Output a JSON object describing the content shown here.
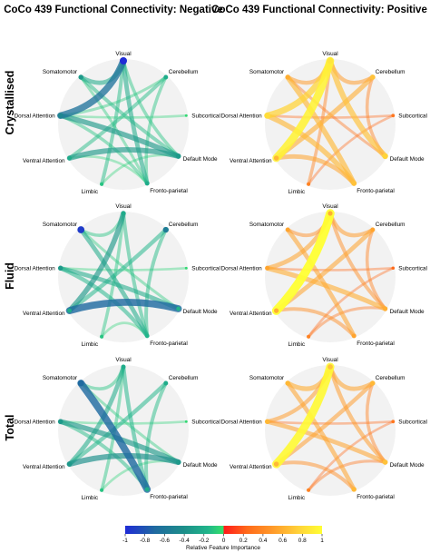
{
  "titles": {
    "negative": "CoCo 439 Functional Connectivity: Negative",
    "positive": "CoCo 439 Functional Connectivity: Positive"
  },
  "row_labels": [
    "Crystallised",
    "Fluid",
    "Total"
  ],
  "colorbar": {
    "label": "Relative Feature Importance",
    "ticks": [
      "-1",
      "-0.8",
      "-0.6",
      "-0.4",
      "-0.2",
      "0",
      "0.2",
      "0.4",
      "0.6",
      "0.8",
      "1"
    ],
    "range": [
      -1,
      1
    ],
    "negative_colors": [
      "#1f2bd6",
      "#1f6aa0",
      "#1d8f8a",
      "#20b58a",
      "#2fd27a",
      "#35e06a"
    ],
    "positive_colors": [
      "#ff1a1a",
      "#ff6a1a",
      "#ff9a2a",
      "#ffc23a",
      "#ffe63a",
      "#ffff33"
    ]
  },
  "chart_data": [
    {
      "type": "chord",
      "panel": "Crystallised — Negative",
      "nodes": [
        "Visual",
        "Cerebellum",
        "Subcortical",
        "Default Mode",
        "Fronto-parietal",
        "Limbic",
        "Ventral Attention",
        "Dorsal Attention",
        "Somatomotor"
      ],
      "node_values": [
        -1.0,
        -0.45,
        -0.1,
        -0.55,
        -0.45,
        -0.3,
        -0.45,
        -0.65,
        -0.55
      ],
      "edges": [
        {
          "from": "Visual",
          "to": "Dorsal Attention",
          "value": -0.75
        },
        {
          "from": "Somatomotor",
          "to": "Visual",
          "value": -0.45
        },
        {
          "from": "Dorsal Attention",
          "to": "Default Mode",
          "value": -0.55
        },
        {
          "from": "Ventral Attention",
          "to": "Default Mode",
          "value": -0.55
        },
        {
          "from": "Visual",
          "to": "Fronto-parietal",
          "value": -0.45
        },
        {
          "from": "Somatomotor",
          "to": "Default Mode",
          "value": -0.35
        },
        {
          "from": "Visual",
          "to": "Limbic",
          "value": -0.35
        },
        {
          "from": "Cerebellum",
          "to": "Ventral Attention",
          "value": -0.35
        },
        {
          "from": "Cerebellum",
          "to": "Fronto-parietal",
          "value": -0.3
        },
        {
          "from": "Dorsal Attention",
          "to": "Fronto-parietal",
          "value": -0.3
        },
        {
          "from": "Visual",
          "to": "Default Mode",
          "value": -0.3
        },
        {
          "from": "Subcortical",
          "to": "Dorsal Attention",
          "value": -0.2
        },
        {
          "from": "Somatomotor",
          "to": "Fronto-parietal",
          "value": -0.25
        },
        {
          "from": "Cerebellum",
          "to": "Dorsal Attention",
          "value": -0.25
        },
        {
          "from": "Ventral Attention",
          "to": "Fronto-parietal",
          "value": -0.2
        },
        {
          "from": "Limbic",
          "to": "Default Mode",
          "value": -0.2
        }
      ]
    },
    {
      "type": "chord",
      "panel": "Crystallised — Positive",
      "nodes": [
        "Visual",
        "Cerebellum",
        "Subcortical",
        "Default Mode",
        "Fronto-parietal",
        "Limbic",
        "Ventral Attention",
        "Dorsal Attention",
        "Somatomotor"
      ],
      "node_values": [
        0.8,
        0.6,
        0.25,
        0.7,
        0.6,
        0.3,
        0.55,
        0.75,
        0.5
      ],
      "edges": [
        {
          "from": "Visual",
          "to": "Ventral Attention",
          "value": 0.9
        },
        {
          "from": "Visual",
          "to": "Dorsal Attention",
          "value": 0.7
        },
        {
          "from": "Visual",
          "to": "Default Mode",
          "value": 0.6
        },
        {
          "from": "Somatomotor",
          "to": "Fronto-parietal",
          "value": 0.55
        },
        {
          "from": "Cerebellum",
          "to": "Ventral Attention",
          "value": 0.5
        },
        {
          "from": "Dorsal Attention",
          "to": "Fronto-parietal",
          "value": 0.55
        },
        {
          "from": "Ventral Attention",
          "to": "Fronto-parietal",
          "value": 0.45
        },
        {
          "from": "Visual",
          "to": "Cerebellum",
          "value": 0.4
        },
        {
          "from": "Somatomotor",
          "to": "Visual",
          "value": 0.4
        },
        {
          "from": "Cerebellum",
          "to": "Default Mode",
          "value": 0.3
        },
        {
          "from": "Subcortical",
          "to": "Dorsal Attention",
          "value": 0.2
        },
        {
          "from": "Limbic",
          "to": "Visual",
          "value": 0.3
        },
        {
          "from": "Subcortical",
          "to": "Limbic",
          "value": 0.2
        },
        {
          "from": "Default Mode",
          "to": "Somatomotor",
          "value": 0.25
        }
      ]
    },
    {
      "type": "chord",
      "panel": "Fluid — Negative",
      "nodes": [
        "Visual",
        "Cerebellum",
        "Subcortical",
        "Default Mode",
        "Fronto-parietal",
        "Limbic",
        "Ventral Attention",
        "Dorsal Attention",
        "Somatomotor"
      ],
      "node_values": [
        -0.45,
        -0.7,
        -0.1,
        -0.4,
        -0.4,
        -0.3,
        -0.45,
        -0.55,
        -0.95
      ],
      "edges": [
        {
          "from": "Ventral Attention",
          "to": "Default Mode",
          "value": -0.8
        },
        {
          "from": "Visual",
          "to": "Ventral Attention",
          "value": -0.55
        },
        {
          "from": "Dorsal Attention",
          "to": "Default Mode",
          "value": -0.45
        },
        {
          "from": "Somatomotor",
          "to": "Fronto-parietal",
          "value": -0.45
        },
        {
          "from": "Cerebellum",
          "to": "Ventral Attention",
          "value": -0.4
        },
        {
          "from": "Dorsal Attention",
          "to": "Fronto-parietal",
          "value": -0.4
        },
        {
          "from": "Visual",
          "to": "Fronto-parietal",
          "value": -0.35
        },
        {
          "from": "Cerebellum",
          "to": "Fronto-parietal",
          "value": -0.35
        },
        {
          "from": "Somatomotor",
          "to": "Visual",
          "value": -0.3
        },
        {
          "from": "Limbic",
          "to": "Visual",
          "value": -0.3
        },
        {
          "from": "Subcortical",
          "to": "Dorsal Attention",
          "value": -0.2
        },
        {
          "from": "Somatomotor",
          "to": "Default Mode",
          "value": -0.25
        },
        {
          "from": "Limbic",
          "to": "Fronto-parietal",
          "value": -0.2
        }
      ]
    },
    {
      "type": "chord",
      "panel": "Fluid — Positive",
      "nodes": [
        "Visual",
        "Cerebellum",
        "Subcortical",
        "Default Mode",
        "Fronto-parietal",
        "Limbic",
        "Ventral Attention",
        "Dorsal Attention",
        "Somatomotor"
      ],
      "node_values": [
        0.5,
        0.45,
        0.2,
        0.5,
        0.45,
        0.3,
        0.5,
        0.45,
        0.45
      ],
      "edges": [
        {
          "from": "Visual",
          "to": "Ventral Attention",
          "value": 1.0
        },
        {
          "from": "Dorsal Attention",
          "to": "Default Mode",
          "value": 0.5
        },
        {
          "from": "Somatomotor",
          "to": "Fronto-parietal",
          "value": 0.45
        },
        {
          "from": "Visual",
          "to": "Dorsal Attention",
          "value": 0.45
        },
        {
          "from": "Cerebellum",
          "to": "Ventral Attention",
          "value": 0.45
        },
        {
          "from": "Visual",
          "to": "Cerebellum",
          "value": 0.4
        },
        {
          "from": "Somatomotor",
          "to": "Visual",
          "value": 0.35
        },
        {
          "from": "Visual",
          "to": "Default Mode",
          "value": 0.35
        },
        {
          "from": "Ventral Attention",
          "to": "Fronto-parietal",
          "value": 0.35
        },
        {
          "from": "Cerebellum",
          "to": "Default Mode",
          "value": 0.3
        },
        {
          "from": "Subcortical",
          "to": "Dorsal Attention",
          "value": 0.2
        },
        {
          "from": "Limbic",
          "to": "Default Mode",
          "value": 0.25
        },
        {
          "from": "Subcortical",
          "to": "Limbic",
          "value": 0.2
        }
      ]
    },
    {
      "type": "chord",
      "panel": "Total — Negative",
      "nodes": [
        "Visual",
        "Cerebellum",
        "Subcortical",
        "Default Mode",
        "Fronto-parietal",
        "Limbic",
        "Ventral Attention",
        "Dorsal Attention",
        "Somatomotor"
      ],
      "node_values": [
        -0.45,
        -0.45,
        -0.1,
        -0.55,
        -0.45,
        -0.3,
        -0.55,
        -0.55,
        -0.8
      ],
      "edges": [
        {
          "from": "Somatomotor",
          "to": "Fronto-parietal",
          "value": -0.8
        },
        {
          "from": "Ventral Attention",
          "to": "Default Mode",
          "value": -0.6
        },
        {
          "from": "Dorsal Attention",
          "to": "Default Mode",
          "value": -0.55
        },
        {
          "from": "Visual",
          "to": "Ventral Attention",
          "value": -0.45
        },
        {
          "from": "Visual",
          "to": "Fronto-parietal",
          "value": -0.4
        },
        {
          "from": "Cerebellum",
          "to": "Ventral Attention",
          "value": -0.4
        },
        {
          "from": "Dorsal Attention",
          "to": "Fronto-parietal",
          "value": -0.35
        },
        {
          "from": "Cerebellum",
          "to": "Fronto-parietal",
          "value": -0.35
        },
        {
          "from": "Somatomotor",
          "to": "Visual",
          "value": -0.3
        },
        {
          "from": "Limbic",
          "to": "Visual",
          "value": -0.3
        },
        {
          "from": "Subcortical",
          "to": "Dorsal Attention",
          "value": -0.2
        },
        {
          "from": "Somatomotor",
          "to": "Default Mode",
          "value": -0.25
        },
        {
          "from": "Limbic",
          "to": "Default Mode",
          "value": -0.2
        }
      ]
    },
    {
      "type": "chord",
      "panel": "Total — Positive",
      "nodes": [
        "Visual",
        "Cerebellum",
        "Subcortical",
        "Default Mode",
        "Fronto-parietal",
        "Limbic",
        "Ventral Attention",
        "Dorsal Attention",
        "Somatomotor"
      ],
      "node_values": [
        0.6,
        0.55,
        0.25,
        0.6,
        0.55,
        0.3,
        0.55,
        0.55,
        0.55
      ],
      "edges": [
        {
          "from": "Visual",
          "to": "Ventral Attention",
          "value": 0.95
        },
        {
          "from": "Somatomotor",
          "to": "Visual",
          "value": 0.5
        },
        {
          "from": "Visual",
          "to": "Cerebellum",
          "value": 0.45
        },
        {
          "from": "Somatomotor",
          "to": "Fronto-parietal",
          "value": 0.45
        },
        {
          "from": "Dorsal Attention",
          "to": "Default Mode",
          "value": 0.45
        },
        {
          "from": "Cerebellum",
          "to": "Ventral Attention",
          "value": 0.4
        },
        {
          "from": "Visual",
          "to": "Default Mode",
          "value": 0.4
        },
        {
          "from": "Visual",
          "to": "Dorsal Attention",
          "value": 0.4
        },
        {
          "from": "Ventral Attention",
          "to": "Fronto-parietal",
          "value": 0.35
        },
        {
          "from": "Cerebellum",
          "to": "Default Mode",
          "value": 0.3
        },
        {
          "from": "Subcortical",
          "to": "Dorsal Attention",
          "value": 0.2
        },
        {
          "from": "Limbic",
          "to": "Default Mode",
          "value": 0.25
        },
        {
          "from": "Subcortical",
          "to": "Limbic",
          "value": 0.2
        }
      ]
    }
  ]
}
